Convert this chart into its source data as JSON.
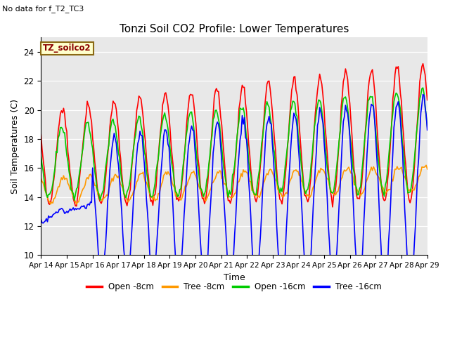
{
  "title": "Tonzi Soil CO2 Profile: Lower Temperatures",
  "subtitle": "No data for f_T2_TC3",
  "xlabel": "Time",
  "ylabel": "Soil Temperatures (C)",
  "ylim": [
    10,
    25
  ],
  "yticks": [
    10,
    12,
    14,
    16,
    18,
    20,
    22,
    24
  ],
  "background_color": "#e8e8e8",
  "legend_label": "TZ_soilco2",
  "legend_items": [
    "Open -8cm",
    "Tree -8cm",
    "Open -16cm",
    "Tree -16cm"
  ],
  "legend_colors": [
    "#ff0000",
    "#ff9900",
    "#00cc00",
    "#0000ff"
  ],
  "line_width": 1.2,
  "xticklabels": [
    "Apr 14",
    "Apr 15",
    "Apr 16",
    "Apr 17",
    "Apr 18",
    "Apr 19",
    "Apr 20",
    "Apr 21",
    "Apr 22",
    "Apr 23",
    "Apr 24",
    "Apr 25",
    "Apr 26",
    "Apr 27",
    "Apr 28",
    "Apr 29"
  ],
  "figsize": [
    6.4,
    4.8
  ],
  "dpi": 100
}
